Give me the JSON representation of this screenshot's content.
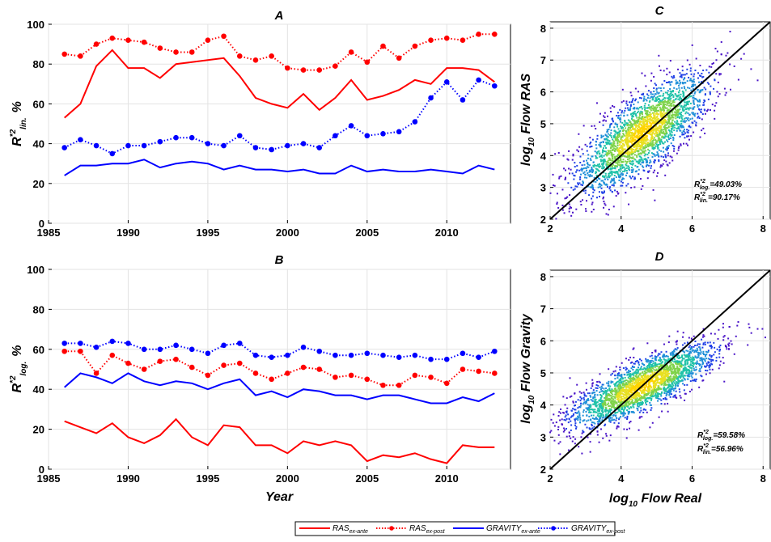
{
  "colors": {
    "ras": "#ff0000",
    "gravity": "#0000ff"
  },
  "legend": {
    "items": [
      {
        "base": "RAS",
        "sub": "ex-ante",
        "color": "#ff0000",
        "dotted": false
      },
      {
        "base": "RAS",
        "sub": "ex-post",
        "color": "#ff0000",
        "dotted": true
      },
      {
        "base": "GRAVITY",
        "sub": "ex-ante",
        "color": "#0000ff",
        "dotted": false
      },
      {
        "base": "GRAVITY",
        "sub": "ex-post",
        "color": "#0000ff",
        "dotted": true
      }
    ]
  },
  "chart_data": [
    {
      "id": "A",
      "type": "line",
      "title": "A",
      "ylabel": {
        "main": "R",
        "sup": "*2",
        "sub": "lin.",
        "unit": "%"
      },
      "xlabel": "",
      "xlim": [
        1985,
        2014
      ],
      "ylim": [
        0,
        100
      ],
      "xticks": [
        1985,
        1990,
        1995,
        2000,
        2005,
        2010
      ],
      "yticks": [
        0,
        20,
        40,
        60,
        80,
        100
      ],
      "x": [
        1986,
        1987,
        1988,
        1989,
        1990,
        1991,
        1992,
        1993,
        1994,
        1995,
        1996,
        1997,
        1998,
        1999,
        2000,
        2001,
        2002,
        2003,
        2004,
        2005,
        2006,
        2007,
        2008,
        2009,
        2010,
        2011,
        2012,
        2013
      ],
      "series": [
        {
          "name": "RAS ex-ante",
          "color": "#ff0000",
          "dotted": false,
          "values": [
            53,
            60,
            79,
            87,
            78,
            78,
            73,
            80,
            81,
            82,
            83,
            74,
            63,
            60,
            58,
            65,
            57,
            63,
            72,
            62,
            64,
            67,
            72,
            70,
            78,
            78,
            77,
            71
          ]
        },
        {
          "name": "RAS ex-post",
          "color": "#ff0000",
          "dotted": true,
          "values": [
            85,
            84,
            90,
            93,
            92,
            91,
            88,
            86,
            86,
            92,
            94,
            84,
            82,
            84,
            78,
            77,
            77,
            79,
            86,
            81,
            89,
            83,
            89,
            92,
            93,
            92,
            95,
            95
          ]
        },
        {
          "name": "GRAVITY ex-ante",
          "color": "#0000ff",
          "dotted": false,
          "values": [
            24,
            29,
            29,
            30,
            30,
            32,
            28,
            30,
            31,
            30,
            27,
            29,
            27,
            27,
            26,
            27,
            25,
            25,
            29,
            26,
            27,
            26,
            26,
            27,
            26,
            25,
            29,
            27
          ]
        },
        {
          "name": "GRAVITY ex-post",
          "color": "#0000ff",
          "dotted": true,
          "values": [
            38,
            42,
            39,
            35,
            39,
            39,
            41,
            43,
            43,
            40,
            39,
            44,
            38,
            37,
            39,
            40,
            38,
            44,
            49,
            44,
            45,
            46,
            51,
            63,
            71,
            62,
            72,
            69
          ]
        }
      ]
    },
    {
      "id": "B",
      "type": "line",
      "title": "B",
      "ylabel": {
        "main": "R",
        "sup": "*2",
        "sub": "log.",
        "unit": "%"
      },
      "xlabel": "Year",
      "xlim": [
        1985,
        2014
      ],
      "ylim": [
        0,
        100
      ],
      "xticks": [
        1985,
        1990,
        1995,
        2000,
        2005,
        2010
      ],
      "yticks": [
        0,
        20,
        40,
        60,
        80,
        100
      ],
      "x": [
        1986,
        1987,
        1988,
        1989,
        1990,
        1991,
        1992,
        1993,
        1994,
        1995,
        1996,
        1997,
        1998,
        1999,
        2000,
        2001,
        2002,
        2003,
        2004,
        2005,
        2006,
        2007,
        2008,
        2009,
        2010,
        2011,
        2012,
        2013
      ],
      "series": [
        {
          "name": "RAS ex-ante",
          "color": "#ff0000",
          "dotted": false,
          "values": [
            24,
            21,
            18,
            23,
            16,
            13,
            17,
            25,
            16,
            12,
            22,
            21,
            12,
            12,
            8,
            14,
            12,
            14,
            12,
            4,
            7,
            6,
            8,
            5,
            3,
            12,
            11,
            11
          ]
        },
        {
          "name": "RAS ex-post",
          "color": "#ff0000",
          "dotted": true,
          "values": [
            59,
            59,
            48,
            57,
            53,
            50,
            54,
            55,
            51,
            47,
            52,
            53,
            48,
            45,
            48,
            51,
            50,
            46,
            47,
            45,
            42,
            42,
            47,
            46,
            43,
            50,
            49,
            48
          ]
        },
        {
          "name": "GRAVITY ex-ante",
          "color": "#0000ff",
          "dotted": false,
          "values": [
            41,
            48,
            46,
            43,
            48,
            44,
            42,
            44,
            43,
            40,
            43,
            45,
            37,
            39,
            36,
            40,
            39,
            37,
            37,
            35,
            37,
            37,
            35,
            33,
            33,
            36,
            34,
            38
          ]
        },
        {
          "name": "GRAVITY ex-post",
          "color": "#0000ff",
          "dotted": true,
          "values": [
            63,
            63,
            61,
            64,
            63,
            60,
            60,
            62,
            60,
            58,
            62,
            63,
            57,
            56,
            57,
            61,
            59,
            57,
            57,
            58,
            57,
            56,
            57,
            55,
            55,
            58,
            56,
            59
          ]
        }
      ]
    },
    {
      "id": "C",
      "type": "scatter",
      "title": "C",
      "ylabel": {
        "pre": "log",
        "sub": "10",
        "post": " Flow RAS"
      },
      "xlabel": "",
      "xlim": [
        2,
        8.2
      ],
      "ylim": [
        2,
        8.2
      ],
      "xticks": [
        2,
        4,
        6,
        8
      ],
      "yticks": [
        2,
        3,
        4,
        5,
        6,
        7,
        8
      ],
      "density": {
        "center": [
          4.6,
          4.7
        ],
        "spread_major": 1.25,
        "spread_minor": 0.45,
        "angle_deg": 45
      },
      "annotations": [
        {
          "main": "R",
          "sup": "*2",
          "sub": "log.",
          "value": "=49.03%"
        },
        {
          "main": "R",
          "sup": "*2",
          "sub": "lin.",
          "value": "=90.17%"
        }
      ]
    },
    {
      "id": "D",
      "type": "scatter",
      "title": "D",
      "ylabel": {
        "pre": "log",
        "sub": "10",
        "post": " Flow Gravity"
      },
      "xlabel": {
        "pre": "log",
        "sub": "10",
        "post": " Flow Real"
      },
      "xlim": [
        2,
        8.2
      ],
      "ylim": [
        2,
        8.2
      ],
      "xticks": [
        2,
        4,
        6,
        8
      ],
      "yticks": [
        2,
        3,
        4,
        5,
        6,
        7,
        8
      ],
      "density": {
        "center": [
          4.6,
          4.6
        ],
        "spread_major": 1.15,
        "spread_minor": 0.35,
        "angle_deg": 30
      },
      "annotations": [
        {
          "main": "R",
          "sup": "*2",
          "sub": "log.",
          "value": "=59.58%"
        },
        {
          "main": "R",
          "sup": "*2",
          "sub": "lin.",
          "value": "=56.96%"
        }
      ]
    }
  ]
}
